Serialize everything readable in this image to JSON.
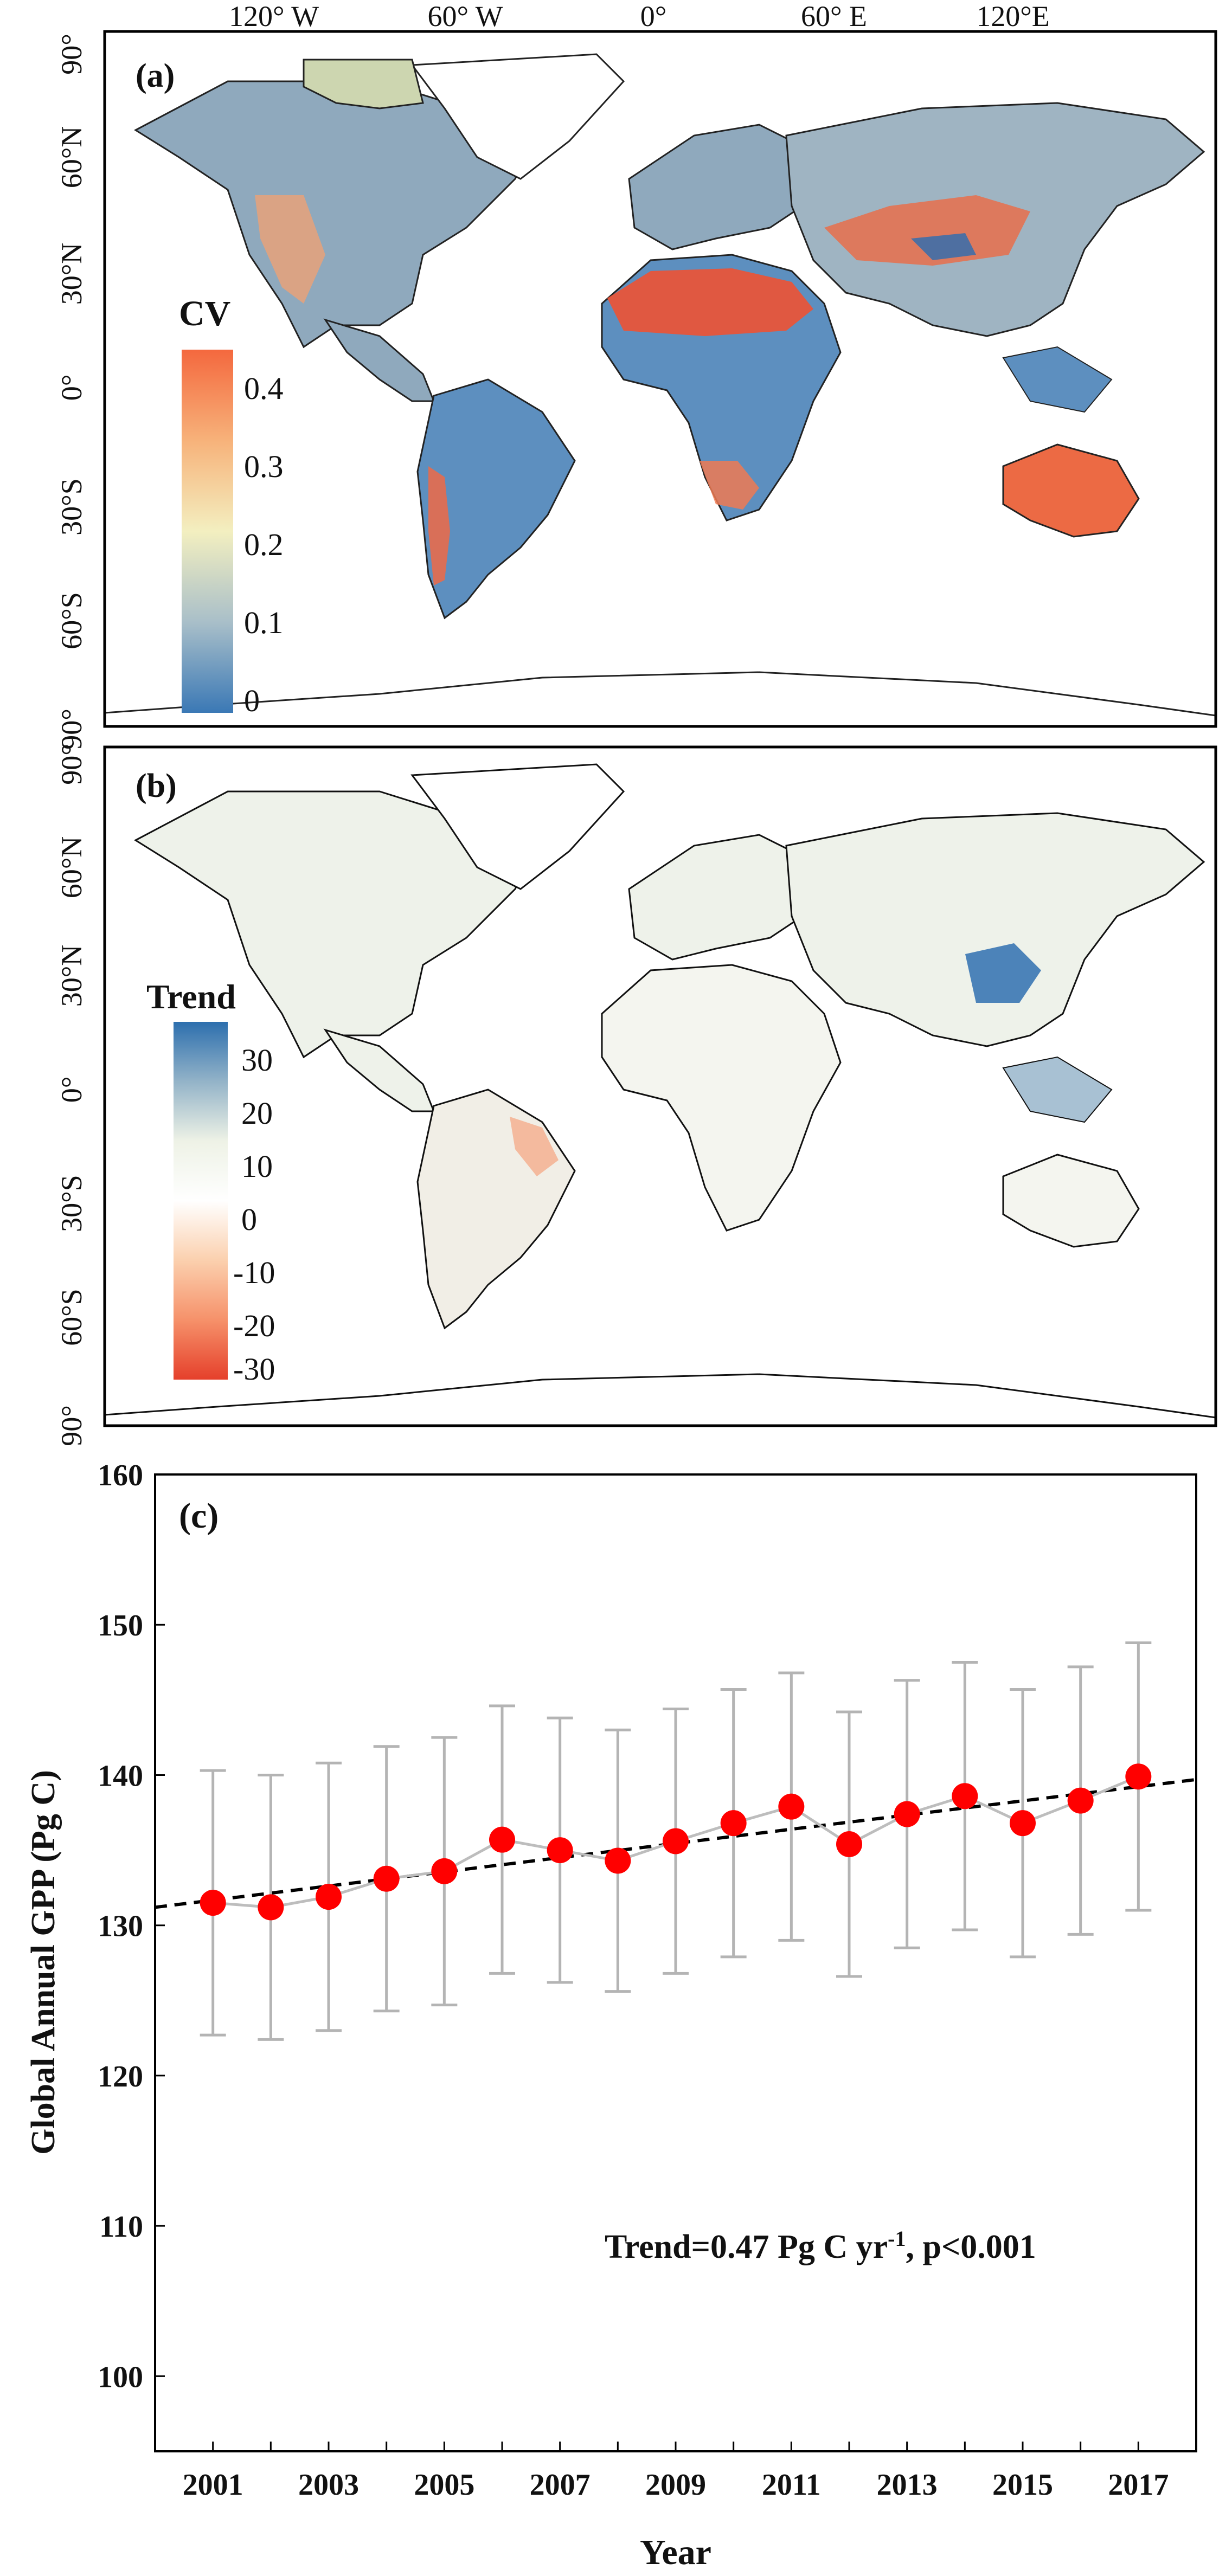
{
  "panel_a": {
    "tag": "(a)",
    "colorbar_title": "CV",
    "colorbar_ticks": [
      "0.4",
      "0.3",
      "0.2",
      "0.1",
      "0"
    ],
    "colorbar_colors": [
      "#f4683e",
      "#f7b27a",
      "#f3efc0",
      "#a9bfc9",
      "#3a78b5"
    ],
    "lon_labels": [
      "120° W",
      "60° W",
      "0°",
      "60° E",
      "120°E"
    ],
    "lat_labels": [
      "90°",
      "60°N",
      "30°N",
      "0°",
      "30°S",
      "60°S",
      "90°"
    ]
  },
  "panel_b": {
    "tag": "(b)",
    "colorbar_title": "Trend",
    "colorbar_ticks": [
      "30",
      "20",
      "10",
      "0",
      "-10",
      "-20",
      "-30"
    ],
    "colorbar_colors": [
      "#2d6fae",
      "#93b3c8",
      "#eef2e6",
      "#ffffff",
      "#fbd0ae",
      "#f6916a",
      "#e5402b"
    ],
    "lat_labels": [
      "90°",
      "60°N",
      "30°N",
      "0°",
      "30°S",
      "60°S",
      "90°"
    ]
  },
  "chart_data": {
    "type": "line",
    "panel_tag": "(c)",
    "x": [
      2001,
      2002,
      2003,
      2004,
      2005,
      2006,
      2007,
      2008,
      2009,
      2010,
      2011,
      2012,
      2013,
      2014,
      2015,
      2016,
      2017
    ],
    "series": [
      {
        "name": "Global annual GPP",
        "values": [
          131.5,
          131.2,
          131.9,
          133.1,
          133.6,
          135.7,
          135.0,
          134.3,
          135.6,
          136.8,
          137.9,
          135.4,
          137.4,
          138.6,
          136.8,
          138.3,
          139.9
        ],
        "error": [
          8.8,
          8.8,
          8.9,
          8.8,
          8.9,
          8.9,
          8.8,
          8.7,
          8.8,
          8.9,
          8.9,
          8.8,
          8.9,
          8.9,
          8.9,
          8.9,
          8.9
        ]
      }
    ],
    "trend_line": {
      "x": [
        2000,
        2018
      ],
      "y": [
        131.2,
        139.7
      ]
    },
    "xlabel": "Year",
    "ylabel": "Global Annual GPP (Pg C)",
    "xlim": [
      2000,
      2018
    ],
    "ylim": [
      95,
      160
    ],
    "xticks": [
      "2001",
      "2003",
      "2005",
      "2007",
      "2009",
      "2011",
      "2013",
      "2015",
      "2017"
    ],
    "yticks": [
      "100",
      "110",
      "120",
      "130",
      "140",
      "150",
      "160"
    ],
    "annotation": {
      "prefix": "Trend=0.47 Pg C yr",
      "sup": "-1",
      "suffix": ", p<0.001"
    },
    "marker_color": "#ff0000",
    "error_color": "#b4b4b4",
    "trend_color": "#000000"
  }
}
